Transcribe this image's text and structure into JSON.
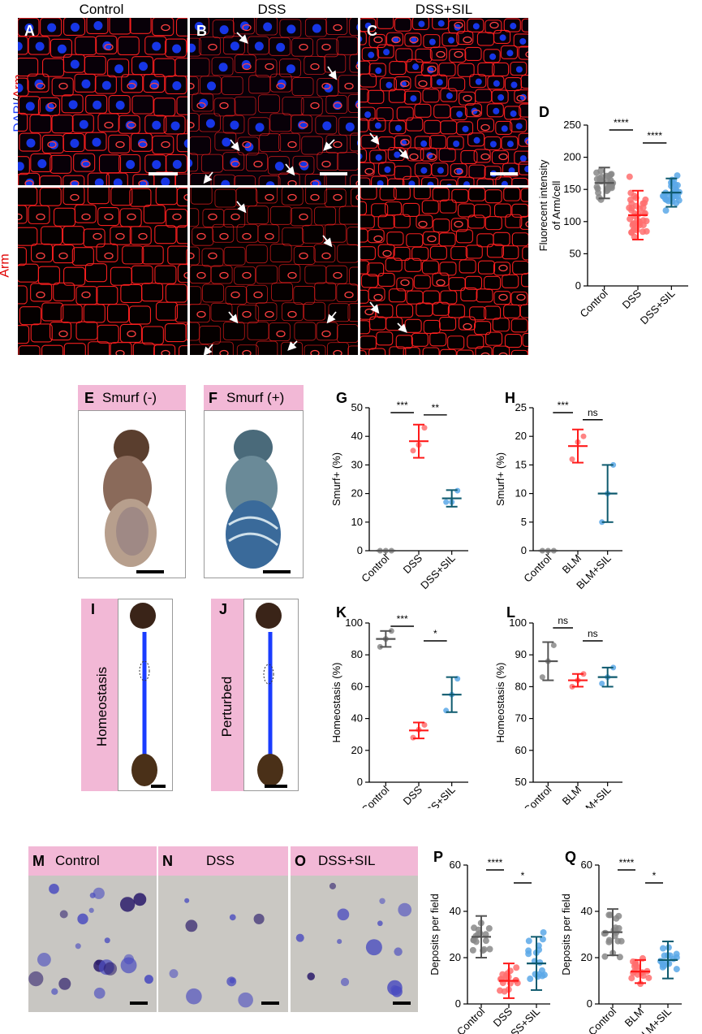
{
  "top_headers": {
    "control": "Control",
    "dss": "DSS",
    "dss_sil": "DSS+SIL"
  },
  "row_labels": {
    "dapi": "DAPI",
    "slash": "/",
    "arm_merged": "Arm",
    "arm": "Arm"
  },
  "panel_letters": {
    "A": "A",
    "B": "B",
    "C": "C",
    "D": "D",
    "E": "E",
    "F": "F",
    "G": "G",
    "H": "H",
    "I": "I",
    "J": "J",
    "K": "K",
    "L": "L",
    "M": "M",
    "N": "N",
    "O": "O",
    "P": "P",
    "Q": "Q"
  },
  "smurf": {
    "neg": "Smurf (-)",
    "pos": "Smurf (+)"
  },
  "gut": {
    "homeostasis": "Homeostasis",
    "perturbed": "Perturbed"
  },
  "staining": {
    "control": "Control",
    "dss": "DSS",
    "dss_sil": "DSS+SIL"
  },
  "colors": {
    "control": "#555555",
    "dss": "#ff1a1a",
    "sil": "#0e5a6e",
    "dss_sil_dots": "#5aa8e8",
    "pink": "#f2b8d6",
    "arm_red": "#ff2020",
    "dapi_blue": "#1a3cff"
  },
  "chart_data": [
    {
      "id": "D",
      "type": "scatter",
      "ylabel": "Fluorecent intensity of Arm/cell",
      "categories": [
        "Control",
        "DSS",
        "DSS+SIL"
      ],
      "ylim": [
        0,
        250
      ],
      "yticks": [
        0,
        50,
        100,
        150,
        200,
        250
      ],
      "means": [
        160,
        110,
        145
      ],
      "sd": [
        24,
        38,
        22
      ],
      "significance": [
        {
          "pair": [
            0,
            1
          ],
          "label": "****"
        },
        {
          "pair": [
            1,
            2
          ],
          "label": "****"
        }
      ]
    },
    {
      "id": "G",
      "type": "scatter",
      "ylabel": "Smurf+ (%)",
      "categories": [
        "Control",
        "DSS",
        "DSS+SIL"
      ],
      "ylim": [
        0,
        50
      ],
      "yticks": [
        0,
        10,
        20,
        30,
        40,
        50
      ],
      "means": [
        0,
        38.3,
        18.3
      ],
      "sd": [
        0,
        5.8,
        2.9
      ],
      "points": [
        [
          0,
          0,
          0
        ],
        [
          35,
          37,
          43
        ],
        [
          17,
          17,
          21
        ]
      ],
      "significance": [
        {
          "pair": [
            0,
            1
          ],
          "label": "***"
        },
        {
          "pair": [
            1,
            2
          ],
          "label": "**"
        }
      ]
    },
    {
      "id": "H",
      "type": "scatter",
      "ylabel": "Smurf+ (%)",
      "categories": [
        "Control",
        "BLM",
        "BLM+SIL"
      ],
      "ylim": [
        0,
        25
      ],
      "yticks": [
        0,
        5,
        10,
        15,
        20,
        25
      ],
      "means": [
        0,
        18.3,
        10
      ],
      "sd": [
        0,
        2.9,
        5
      ],
      "points": [
        [
          0,
          0,
          0
        ],
        [
          16,
          19,
          20
        ],
        [
          5,
          10,
          15
        ]
      ],
      "significance": [
        {
          "pair": [
            0,
            1
          ],
          "label": "***"
        },
        {
          "pair": [
            1,
            2
          ],
          "label": "ns"
        }
      ]
    },
    {
      "id": "K",
      "type": "scatter",
      "ylabel": "Homeostasis (%)",
      "categories": [
        "Control",
        "DSS",
        "DSS+SIL"
      ],
      "ylim": [
        0,
        100
      ],
      "yticks": [
        0,
        20,
        40,
        60,
        80,
        100
      ],
      "means": [
        90,
        32.5,
        55
      ],
      "sd": [
        5,
        5,
        11
      ],
      "points": [
        [
          85,
          90,
          95
        ],
        [
          28,
          33,
          36
        ],
        [
          45,
          55,
          65
        ]
      ],
      "significance": [
        {
          "pair": [
            0,
            1
          ],
          "label": "***"
        },
        {
          "pair": [
            1,
            2
          ],
          "label": "*"
        }
      ]
    },
    {
      "id": "L",
      "type": "scatter",
      "ylabel": "Homeostasis (%)",
      "categories": [
        "Control",
        "BLM",
        "BLM+SIL"
      ],
      "ylim": [
        50,
        100
      ],
      "yticks": [
        50,
        60,
        70,
        80,
        90,
        100
      ],
      "means": [
        88,
        82,
        83
      ],
      "sd": [
        6,
        2,
        3
      ],
      "points": [
        [
          83,
          88,
          93
        ],
        [
          80,
          82,
          84
        ],
        [
          81,
          83,
          86
        ]
      ],
      "significance": [
        {
          "pair": [
            0,
            1
          ],
          "label": "ns"
        },
        {
          "pair": [
            1,
            2
          ],
          "label": "ns"
        }
      ]
    },
    {
      "id": "P",
      "type": "scatter",
      "ylabel": "Deposits per field",
      "categories": [
        "Control",
        "DSS",
        "DSS+SIL"
      ],
      "ylim": [
        0,
        60
      ],
      "yticks": [
        0,
        20,
        40,
        60
      ],
      "means": [
        29,
        10,
        17.5
      ],
      "sd": [
        9,
        7.5,
        11.5
      ],
      "significance": [
        {
          "pair": [
            0,
            1
          ],
          "label": "****"
        },
        {
          "pair": [
            1,
            2
          ],
          "label": "*"
        }
      ]
    },
    {
      "id": "Q",
      "type": "scatter",
      "ylabel": "Deposits per field",
      "categories": [
        "Control",
        "BLM",
        "BLM+SIL"
      ],
      "ylim": [
        0,
        60
      ],
      "yticks": [
        0,
        20,
        40,
        60
      ],
      "means": [
        31,
        14,
        19
      ],
      "sd": [
        10,
        5,
        8
      ],
      "significance": [
        {
          "pair": [
            0,
            1
          ],
          "label": "****"
        },
        {
          "pair": [
            1,
            2
          ],
          "label": "*"
        }
      ]
    }
  ]
}
